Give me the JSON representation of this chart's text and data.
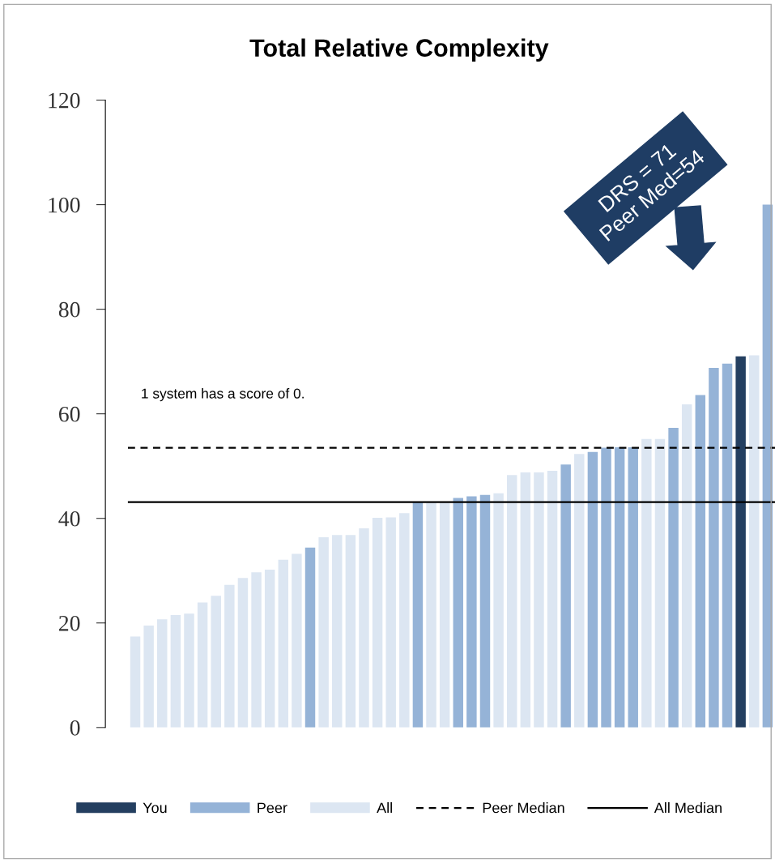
{
  "chart_data": {
    "type": "bar",
    "title": "Total Relative Complexity",
    "categories": [
      null,
      null,
      null,
      null,
      null,
      null,
      null,
      null,
      null,
      null,
      null,
      null,
      null,
      null,
      null,
      null,
      null,
      null,
      null,
      null,
      null,
      null,
      null,
      null,
      null,
      null,
      null,
      null,
      null,
      null,
      null,
      null,
      null,
      null,
      null,
      null,
      null,
      null,
      null,
      null,
      null,
      null,
      null,
      null,
      null,
      null,
      null,
      null
    ],
    "series": [
      {
        "name": "You",
        "color": "#243f60",
        "values": [
          null,
          null,
          null,
          null,
          null,
          null,
          null,
          null,
          null,
          null,
          null,
          null,
          null,
          null,
          null,
          null,
          null,
          null,
          null,
          null,
          null,
          null,
          null,
          null,
          null,
          null,
          null,
          null,
          null,
          null,
          null,
          null,
          null,
          null,
          null,
          null,
          null,
          null,
          null,
          null,
          null,
          null,
          null,
          null,
          null,
          71.0,
          null,
          null
        ]
      },
      {
        "name": "Peer",
        "color": "#95b3d7",
        "values": [
          null,
          null,
          null,
          null,
          null,
          null,
          null,
          null,
          null,
          null,
          null,
          null,
          null,
          34.4,
          null,
          null,
          null,
          null,
          null,
          null,
          null,
          43.1,
          null,
          null,
          43.9,
          44.2,
          44.5,
          null,
          null,
          null,
          null,
          null,
          50.3,
          null,
          52.7,
          53.5,
          53.6,
          53.6,
          null,
          null,
          57.3,
          null,
          63.6,
          68.8,
          69.6,
          null,
          null,
          100
        ]
      },
      {
        "name": "All",
        "color": "#dce6f2",
        "values": [
          17.4,
          19.5,
          20.7,
          21.5,
          21.8,
          23.9,
          25.2,
          27.3,
          28.6,
          29.7,
          30.2,
          32.1,
          33.2,
          null,
          36.4,
          36.8,
          36.8,
          38.1,
          40.1,
          40.2,
          41.0,
          null,
          43.0,
          43.0,
          null,
          null,
          null,
          44.8,
          48.3,
          48.8,
          48.8,
          49.1,
          null,
          52.3,
          null,
          null,
          null,
          null,
          55.2,
          55.2,
          null,
          61.8,
          null,
          null,
          null,
          null,
          71.2,
          null
        ]
      }
    ],
    "ylim": [
      0,
      120
    ],
    "yticks": [
      0,
      20,
      40,
      60,
      80,
      100,
      120
    ],
    "ref_lines": [
      {
        "axis": "y",
        "value": 53.5,
        "label": "Peer Median",
        "color": "#000000",
        "line_style": "dashed"
      },
      {
        "axis": "y",
        "value": 43.1,
        "label": "All Median",
        "color": "#000000",
        "line_style": "solid"
      }
    ],
    "annotations": [
      "1 system has a score of 0.",
      "DRS = 71\nPeer Med=54"
    ],
    "legend": "bottom",
    "grid": false
  }
}
